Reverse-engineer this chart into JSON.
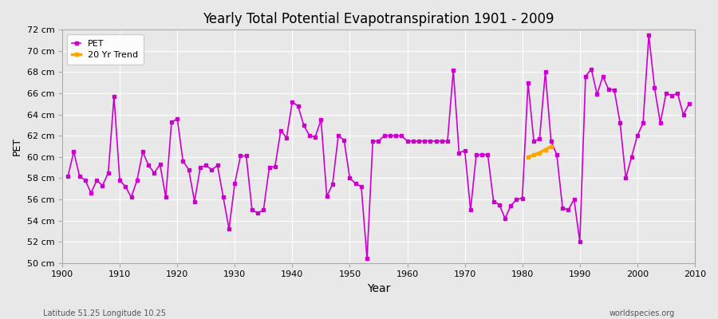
{
  "title": "Yearly Total Potential Evapotranspiration 1901 - 2009",
  "xlabel": "Year",
  "ylabel": "PET",
  "subtitle_left": "Latitude 51.25 Longitude 10.25",
  "subtitle_right": "worldspecies.org",
  "background_color": "#e8e8e8",
  "plot_bg_color": "#e8e8e8",
  "pet_color": "#cc00cc",
  "trend_color": "#FFA500",
  "ylim": [
    50,
    72
  ],
  "yticks": [
    50,
    52,
    54,
    56,
    58,
    60,
    62,
    64,
    66,
    68,
    70,
    72
  ],
  "ytick_labels": [
    "50 cm",
    "52 cm",
    "54 cm",
    "56 cm",
    "58 cm",
    "60 cm",
    "62 cm",
    "64 cm",
    "66 cm",
    "68 cm",
    "70 cm",
    "72 cm"
  ],
  "years": [
    1901,
    1902,
    1903,
    1904,
    1905,
    1906,
    1907,
    1908,
    1909,
    1910,
    1911,
    1912,
    1913,
    1914,
    1915,
    1916,
    1917,
    1918,
    1919,
    1920,
    1921,
    1922,
    1923,
    1924,
    1925,
    1926,
    1927,
    1928,
    1929,
    1930,
    1931,
    1932,
    1933,
    1934,
    1935,
    1936,
    1937,
    1938,
    1939,
    1940,
    1941,
    1942,
    1943,
    1944,
    1945,
    1946,
    1947,
    1948,
    1949,
    1950,
    1951,
    1952,
    1953,
    1954,
    1955,
    1956,
    1957,
    1958,
    1959,
    1960,
    1961,
    1962,
    1963,
    1964,
    1965,
    1966,
    1967,
    1968,
    1969,
    1970,
    1971,
    1972,
    1973,
    1974,
    1975,
    1976,
    1977,
    1978,
    1979,
    1980,
    1981,
    1982,
    1983,
    1984,
    1985,
    1986,
    1987,
    1988,
    1989,
    1990,
    1991,
    1992,
    1993,
    1994,
    1995,
    1996,
    1997,
    1998,
    1999,
    2000,
    2001,
    2002,
    2003,
    2004,
    2005,
    2006,
    2007,
    2008,
    2009
  ],
  "pet": [
    58.2,
    60.5,
    58.2,
    57.8,
    56.6,
    57.8,
    57.3,
    58.5,
    65.7,
    57.8,
    57.2,
    56.2,
    57.8,
    60.5,
    59.2,
    58.5,
    59.3,
    56.2,
    63.3,
    63.6,
    59.6,
    58.8,
    55.8,
    59.0,
    59.2,
    58.8,
    59.2,
    56.2,
    53.2,
    57.5,
    60.1,
    60.1,
    55.0,
    54.7,
    55.0,
    59.0,
    59.1,
    62.5,
    61.8,
    65.2,
    64.8,
    63.0,
    62.0,
    61.9,
    63.5,
    56.3,
    57.4,
    62.0,
    61.6,
    58.0,
    57.5,
    57.2,
    50.4,
    61.5,
    61.5,
    62.0,
    62.0,
    62.0,
    62.0,
    61.5,
    61.5,
    61.5,
    61.5,
    61.5,
    61.5,
    61.5,
    61.5,
    68.2,
    60.4,
    60.6,
    55.0,
    60.2,
    60.2,
    60.2,
    55.8,
    55.5,
    54.2,
    55.4,
    56.0,
    56.1,
    67.0,
    61.5,
    61.7,
    68.0,
    61.5,
    60.2,
    55.2,
    55.0,
    56.0,
    52.0,
    67.6,
    68.3,
    65.9,
    67.6,
    66.4,
    66.3,
    63.2,
    58.0,
    60.0,
    62.0,
    63.2,
    71.5,
    66.5,
    63.2,
    66.0,
    65.8,
    66.0,
    64.0,
    65.0
  ],
  "trend_years": [
    1981,
    1982,
    1983,
    1984,
    1985
  ],
  "trend_values": [
    60.0,
    60.2,
    60.4,
    60.7,
    61.0
  ],
  "legend_entries": [
    "PET",
    "20 Yr Trend"
  ]
}
